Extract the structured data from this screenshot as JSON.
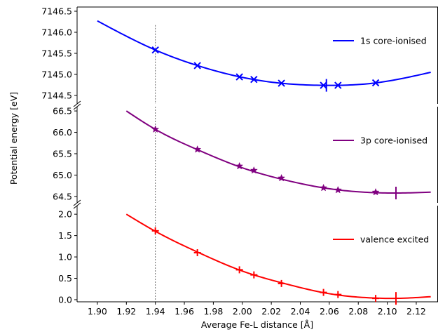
{
  "chart_data": {
    "type": "line",
    "title": "",
    "xlabel": "Average Fe-L distance [Å]",
    "ylabel": "Potential energy [eV]",
    "xlim": [
      1.886,
      2.135
    ],
    "xticks": [
      "1.90",
      "1.92",
      "1.94",
      "1.96",
      "1.98",
      "2.00",
      "2.02",
      "2.04",
      "2.06",
      "2.08",
      "2.10",
      "2.12"
    ],
    "grid": false,
    "legend_placement": "right of each panel",
    "reference_line_x": 1.94,
    "panels": [
      {
        "name": "1s core-ionised",
        "color": "#0000ff",
        "marker": "x",
        "ylim": [
          7144.3,
          7146.6
        ],
        "yticks": [
          "7144.5",
          "7145.0",
          "7145.5",
          "7146.0",
          "7146.5"
        ],
        "curve_start_x": 1.9,
        "curve": {
          "x": [
            1.9,
            1.94,
            1.97,
            2.0,
            2.03,
            2.058,
            2.09,
            2.13
          ],
          "y": [
            7146.27,
            7145.58,
            7145.2,
            7144.93,
            7144.78,
            7144.74,
            7144.79,
            7145.05
          ]
        },
        "points": {
          "x": [
            1.94,
            1.969,
            1.998,
            2.008,
            2.027,
            2.056,
            2.066,
            2.092
          ],
          "y": [
            7145.58,
            7145.21,
            7144.94,
            7144.88,
            7144.79,
            7144.74,
            7144.74,
            7144.8
          ]
        },
        "minimum_x": 2.058,
        "minimum_y": 7144.74
      },
      {
        "name": "3p core-ionised",
        "color": "#800080",
        "marker": "star",
        "ylim": [
          64.35,
          66.6
        ],
        "yticks": [
          "64.5",
          "65.0",
          "65.5",
          "66.0",
          "66.5"
        ],
        "curve": {
          "x": [
            1.92,
            1.94,
            1.97,
            2.0,
            2.03,
            2.06,
            2.09,
            2.105,
            2.13
          ],
          "y": [
            66.5,
            66.07,
            65.58,
            65.17,
            64.88,
            64.68,
            64.59,
            64.58,
            64.6
          ]
        },
        "points": {
          "x": [
            1.94,
            1.969,
            1.998,
            2.008,
            2.027,
            2.056,
            2.066,
            2.092
          ],
          "y": [
            66.07,
            65.6,
            65.21,
            65.11,
            64.93,
            64.7,
            64.65,
            64.6
          ]
        },
        "minimum_x": 2.106,
        "minimum_y": 64.58
      },
      {
        "name": "valence excited",
        "color": "#ff0000",
        "marker": "plus",
        "ylim": [
          -0.05,
          2.2
        ],
        "yticks": [
          "0.0",
          "0.5",
          "1.0",
          "1.5",
          "2.0"
        ],
        "curve": {
          "x": [
            1.92,
            1.94,
            1.97,
            2.0,
            2.03,
            2.06,
            2.09,
            2.105,
            2.13
          ],
          "y": [
            2.0,
            1.6,
            1.1,
            0.67,
            0.37,
            0.14,
            0.04,
            0.03,
            0.07
          ]
        },
        "points": {
          "x": [
            1.94,
            1.969,
            1.998,
            2.008,
            2.027,
            2.056,
            2.066,
            2.092
          ],
          "y": [
            1.61,
            1.1,
            0.7,
            0.58,
            0.38,
            0.17,
            0.12,
            0.03
          ]
        },
        "minimum_x": 2.106,
        "minimum_y": 0.03
      }
    ]
  }
}
